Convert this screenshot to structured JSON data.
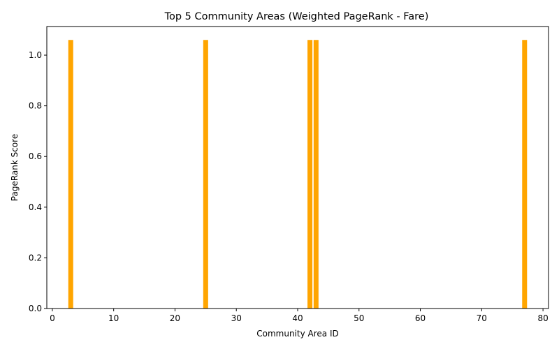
{
  "chart_data": {
    "type": "bar",
    "title": "Top 5 Community Areas (Weighted PageRank - Fare)",
    "xlabel": "Community Area ID",
    "ylabel": "PageRank Score",
    "x": [
      3,
      25,
      42,
      43,
      77
    ],
    "values": [
      1.06,
      1.06,
      1.06,
      1.06,
      1.06
    ],
    "bar_width": 0.8,
    "xlim": [
      -0.9,
      80.9
    ],
    "ylim": [
      0,
      1.113
    ],
    "xticks": [
      0,
      10,
      20,
      30,
      40,
      50,
      60,
      70,
      80
    ],
    "xtick_labels": [
      "0",
      "10",
      "20",
      "30",
      "40",
      "50",
      "60",
      "70",
      "80"
    ],
    "yticks": [
      0.0,
      0.2,
      0.4,
      0.6,
      0.8,
      1.0
    ],
    "ytick_labels": [
      "0.0",
      "0.2",
      "0.4",
      "0.6",
      "0.8",
      "1.0"
    ],
    "grid": false,
    "legend": "none",
    "bar_color": "#ffa500"
  }
}
